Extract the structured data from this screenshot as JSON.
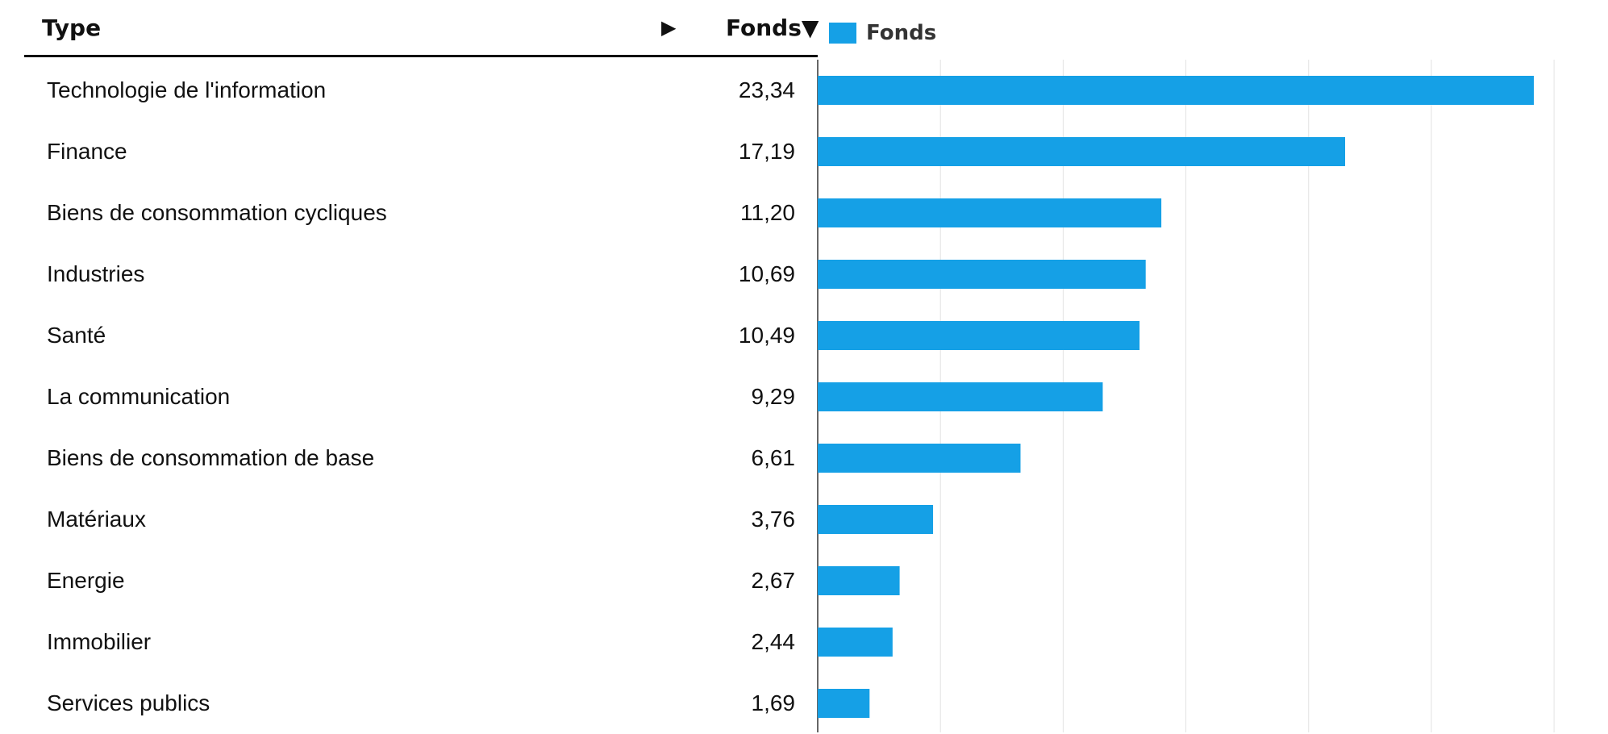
{
  "header": {
    "type_label": "Type",
    "expand_arrow": "▶",
    "fonds_label": "Fonds▼"
  },
  "legend": {
    "label": "Fonds",
    "color": "#15a0e6"
  },
  "chart_data": {
    "type": "bar",
    "orientation": "horizontal",
    "categories": [
      "Technologie de l'information",
      "Finance",
      "Biens de consommation cycliques",
      "Industries",
      "Santé",
      "La communication",
      "Biens de consommation de base",
      "Matériaux",
      "Energie",
      "Immobilier",
      "Services publics"
    ],
    "series": [
      {
        "name": "Fonds",
        "color": "#15a0e6",
        "values": [
          23.34,
          17.19,
          11.2,
          10.69,
          10.49,
          9.29,
          6.61,
          3.76,
          2.67,
          2.44,
          1.69
        ]
      }
    ],
    "value_labels": [
      "23,34",
      "17,19",
      "11,20",
      "10,69",
      "10,49",
      "9,29",
      "6,61",
      "3,76",
      "2,67",
      "2,44",
      "1,69"
    ],
    "xlim": [
      0,
      25
    ],
    "grid": true,
    "legend_position": "top-left"
  }
}
